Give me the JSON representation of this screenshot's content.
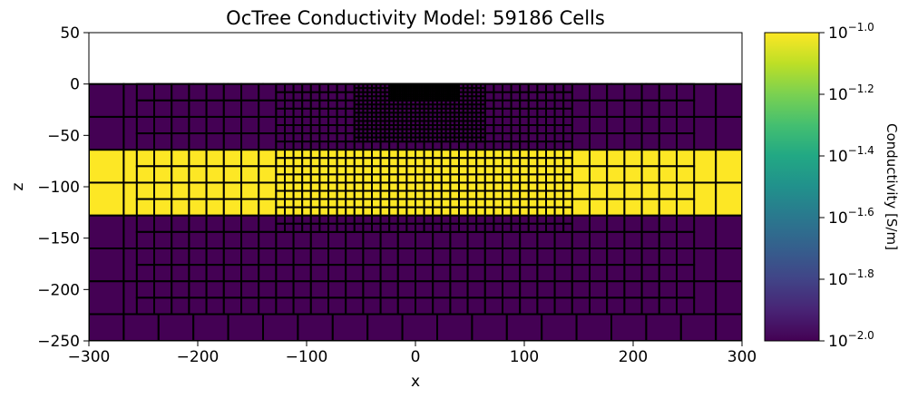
{
  "chart_data": {
    "type": "heatmap",
    "title": "OcTree Conductivity Model: 59186 Cells",
    "xlabel": "x",
    "ylabel": "z",
    "xlim": [
      -300,
      300
    ],
    "ylim": [
      -250,
      50
    ],
    "xticks": [
      "−300",
      "−200",
      "−100",
      "0",
      "100",
      "200",
      "300"
    ],
    "xtick_values": [
      -300,
      -200,
      -100,
      0,
      100,
      200,
      300
    ],
    "yticks": [
      "50",
      "0",
      "−50",
      "−100",
      "−150",
      "−200",
      "−250"
    ],
    "ytick_values": [
      50,
      0,
      -50,
      -100,
      -150,
      -200,
      -250
    ],
    "colormap": "viridis",
    "colors": {
      "low": "#440154",
      "high": "#fde725",
      "mesh_line": "#000000",
      "above_surface": "#ffffff"
    },
    "colorbar": {
      "label": "Conductivity [S/m]",
      "scale": "log",
      "range": [
        0.01,
        0.1
      ],
      "ticks": [
        {
          "base": "10",
          "exp": "−1.0",
          "value": -1.0
        },
        {
          "base": "10",
          "exp": "−1.2",
          "value": -1.2
        },
        {
          "base": "10",
          "exp": "−1.4",
          "value": -1.4
        },
        {
          "base": "10",
          "exp": "−1.6",
          "value": -1.6
        },
        {
          "base": "10",
          "exp": "−1.8",
          "value": -1.8
        },
        {
          "base": "10",
          "exp": "−2.0",
          "value": -2.0
        }
      ]
    },
    "model": {
      "background_conductivity": 0.01,
      "layer": {
        "conductivity": 0.1,
        "z_top": -64,
        "z_bottom": -128
      },
      "surface_z": 0
    }
  }
}
